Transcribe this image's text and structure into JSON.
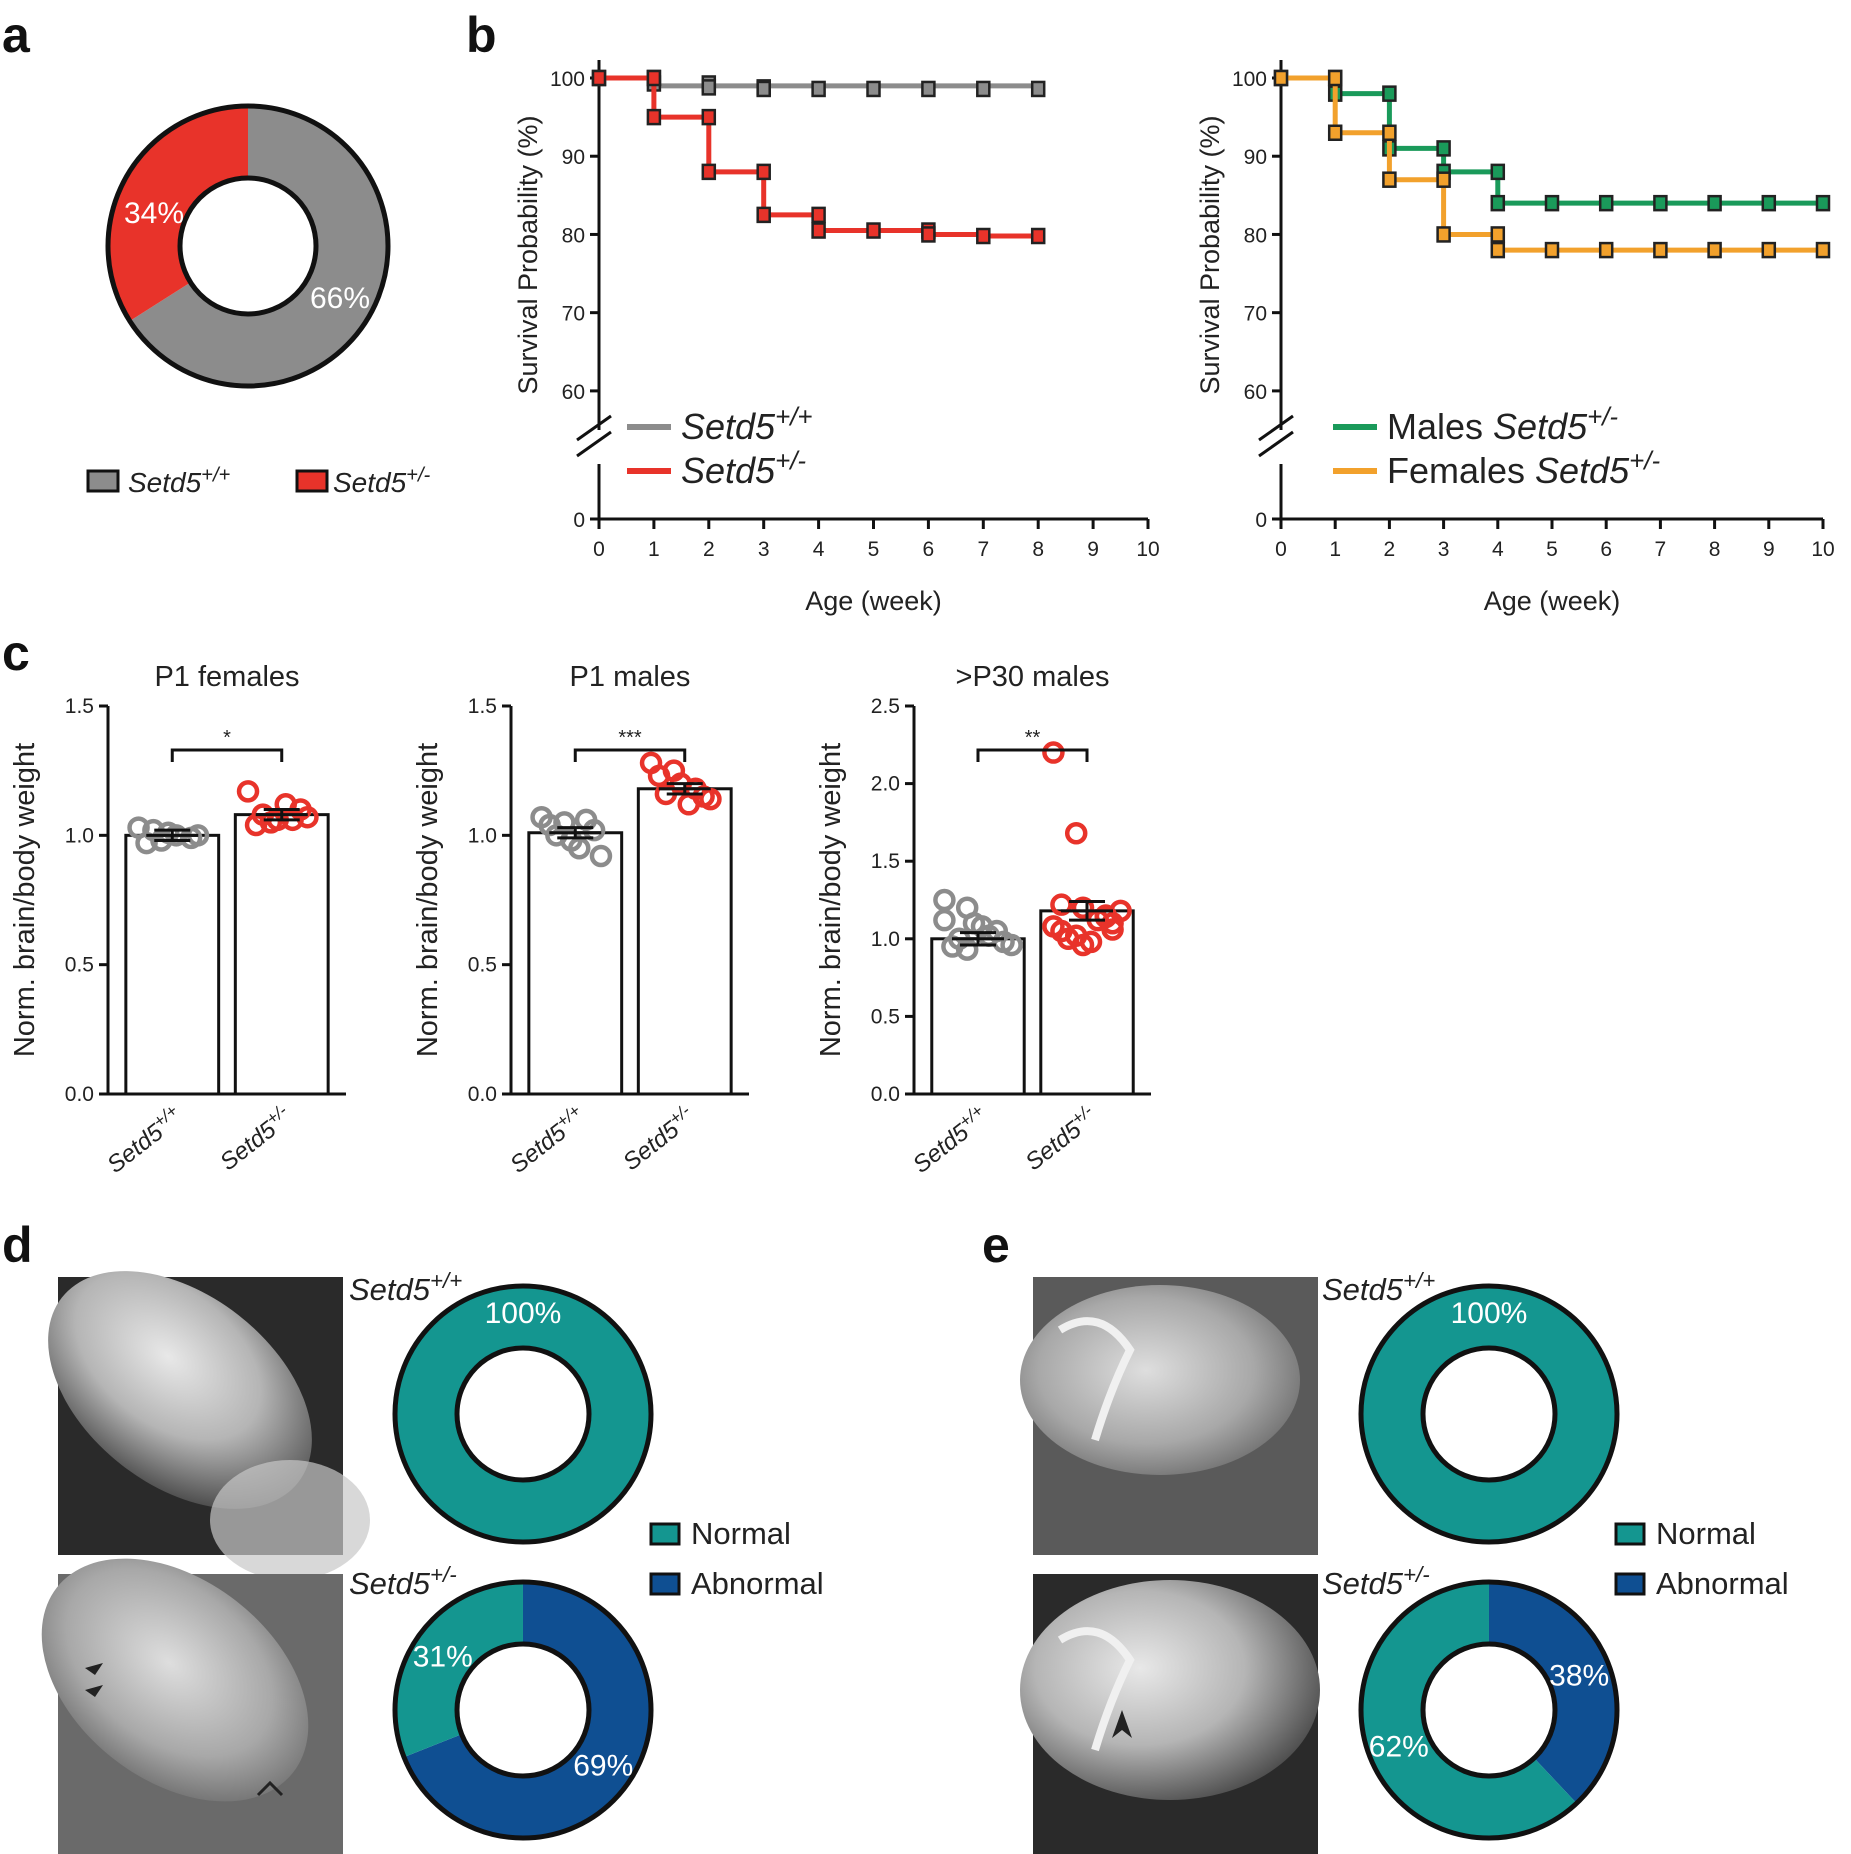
{
  "panel_labels": {
    "a": "a",
    "b": "b",
    "c": "c",
    "d": "d",
    "e": "e"
  },
  "colors": {
    "wt": "#8c8c8c",
    "het": "#e8332a",
    "male": "#1a9a5a",
    "female": "#f2a12c",
    "normal": "#149690",
    "abnormal": "#0f4f92"
  },
  "chart_data": [
    {
      "id": "a",
      "type": "pie",
      "donut": true,
      "slices": [
        {
          "label": "Setd5+/+",
          "value": 66,
          "text": "66%"
        },
        {
          "label": "Setd5+/-",
          "value": 34,
          "text": "34%"
        }
      ],
      "legend": [
        {
          "base": "Setd5",
          "sup": "+/+"
        },
        {
          "base": "Setd5",
          "sup": "+/-"
        }
      ]
    },
    {
      "id": "b_left",
      "type": "line",
      "step": true,
      "xlabel": "Age (week)",
      "ylabel": "Survival Probability (%)",
      "xlim": [
        0,
        10
      ],
      "xticks": [
        "0",
        "1",
        "2",
        "3",
        "4",
        "5",
        "6",
        "7",
        "8",
        "9",
        "10"
      ],
      "yticks": [
        "60",
        "70",
        "80",
        "90",
        "100"
      ],
      "ybreak_tick": "0",
      "ylim": [
        55,
        101
      ],
      "series": [
        {
          "name": "Setd5+/+",
          "base": "Setd5",
          "sup": "+/+",
          "steps": [
            [
              0,
              100
            ],
            [
              1,
              99
            ],
            [
              8,
              99
            ]
          ],
          "markers": [
            [
              0,
              100
            ],
            [
              1,
              100
            ],
            [
              1,
              99.3
            ],
            [
              2,
              99.3
            ],
            [
              2,
              98.8
            ],
            [
              3,
              98.8
            ],
            [
              3,
              98.6
            ],
            [
              4,
              98.6
            ],
            [
              5,
              98.6
            ],
            [
              6,
              98.6
            ],
            [
              7,
              98.6
            ],
            [
              8,
              98.6
            ]
          ]
        },
        {
          "name": "Setd5+/-",
          "base": "Setd5",
          "sup": "+/-",
          "steps": [
            [
              0,
              100
            ],
            [
              1,
              95
            ],
            [
              2,
              88
            ],
            [
              3,
              82.5
            ],
            [
              4,
              80.5
            ],
            [
              6,
              80
            ],
            [
              7,
              79.8
            ],
            [
              8,
              79.8
            ]
          ],
          "markers": [
            [
              0,
              100
            ],
            [
              1,
              100
            ],
            [
              1,
              95
            ],
            [
              2,
              95
            ],
            [
              2,
              88
            ],
            [
              3,
              88
            ],
            [
              3,
              82.5
            ],
            [
              4,
              82.5
            ],
            [
              4,
              80.5
            ],
            [
              5,
              80.5
            ],
            [
              6,
              80.5
            ],
            [
              6,
              80
            ],
            [
              7,
              79.8
            ],
            [
              8,
              79.8
            ]
          ]
        }
      ]
    },
    {
      "id": "b_right",
      "type": "line",
      "step": true,
      "xlabel": "Age (week)",
      "ylabel": "Survival Probability (%)",
      "xlim": [
        0,
        10
      ],
      "xticks": [
        "0",
        "1",
        "2",
        "3",
        "4",
        "5",
        "6",
        "7",
        "8",
        "9",
        "10"
      ],
      "yticks": [
        "60",
        "70",
        "80",
        "90",
        "100"
      ],
      "ybreak_tick": "0",
      "ylim": [
        55,
        101
      ],
      "series": [
        {
          "name": "Males Setd5+/-",
          "prefix": "Males ",
          "base": "Setd5",
          "sup": "+/-",
          "steps": [
            [
              0,
              100
            ],
            [
              1,
              98
            ],
            [
              2,
              91
            ],
            [
              3,
              88
            ],
            [
              4,
              84
            ],
            [
              10,
              84
            ]
          ],
          "markers": [
            [
              0,
              100
            ],
            [
              1,
              100
            ],
            [
              1,
              98
            ],
            [
              2,
              98
            ],
            [
              2,
              91
            ],
            [
              3,
              91
            ],
            [
              3,
              88
            ],
            [
              4,
              88
            ],
            [
              4,
              84
            ],
            [
              5,
              84
            ],
            [
              6,
              84
            ],
            [
              7,
              84
            ],
            [
              8,
              84
            ],
            [
              9,
              84
            ],
            [
              10,
              84
            ]
          ]
        },
        {
          "name": "Females Setd5+/-",
          "prefix": "Females ",
          "base": "Setd5",
          "sup": "+/-",
          "steps": [
            [
              0,
              100
            ],
            [
              1,
              93
            ],
            [
              2,
              87
            ],
            [
              3,
              80
            ],
            [
              4,
              78
            ],
            [
              10,
              78
            ]
          ],
          "markers": [
            [
              0,
              100
            ],
            [
              1,
              100
            ],
            [
              1,
              93
            ],
            [
              2,
              93
            ],
            [
              2,
              87
            ],
            [
              3,
              87
            ],
            [
              3,
              80
            ],
            [
              4,
              80
            ],
            [
              4,
              78
            ],
            [
              5,
              78
            ],
            [
              6,
              78
            ],
            [
              7,
              78
            ],
            [
              8,
              78
            ],
            [
              9,
              78
            ],
            [
              10,
              78
            ]
          ]
        }
      ]
    },
    {
      "id": "c1",
      "type": "bar",
      "title": "P1 females",
      "ylabel": "Norm. brain/body weight",
      "ylim": [
        0,
        1.5
      ],
      "yticks": [
        "0.0",
        "0.5",
        "1.0",
        "1.5"
      ],
      "categories": [
        {
          "base": "Setd5",
          "sup": "+/+"
        },
        {
          "base": "Setd5",
          "sup": "+/-"
        }
      ],
      "values": [
        1.0,
        1.08
      ],
      "sem": [
        0.02,
        0.02
      ],
      "significance": "*",
      "points": [
        [
          1.03,
          0.98,
          1.01,
          0.99,
          1.0,
          0.97,
          1.02,
          1.0
        ],
        [
          1.17,
          1.05,
          1.06,
          1.1,
          1.07,
          1.04,
          1.08,
          1.12,
          1.06
        ]
      ]
    },
    {
      "id": "c2",
      "type": "bar",
      "title": "P1 males",
      "ylabel": "Norm. brain/body weight",
      "ylim": [
        0,
        1.5
      ],
      "yticks": [
        "0.0",
        "0.5",
        "1.0",
        "1.5"
      ],
      "categories": [
        {
          "base": "Setd5",
          "sup": "+/+"
        },
        {
          "base": "Setd5",
          "sup": "+/-"
        }
      ],
      "values": [
        1.01,
        1.18
      ],
      "sem": [
        0.02,
        0.02
      ],
      "significance": "***",
      "points": [
        [
          1.07,
          1.05,
          0.98,
          1.02,
          0.92,
          1.04,
          1.0,
          0.95,
          1.06
        ],
        [
          1.28,
          1.25,
          1.2,
          1.15,
          1.14,
          1.23,
          1.16,
          1.12,
          1.18
        ]
      ]
    },
    {
      "id": "c3",
      "type": "bar",
      "title": ">P30 males",
      "ylabel": "Norm. brain/body weight",
      "ylim": [
        0,
        2.5
      ],
      "yticks": [
        "0.0",
        "0.5",
        "1.0",
        "1.5",
        "2.0",
        "2.5"
      ],
      "categories": [
        {
          "base": "Setd5",
          "sup": "+/+"
        },
        {
          "base": "Setd5",
          "sup": "+/-"
        }
      ],
      "values": [
        1.0,
        1.18
      ],
      "sem": [
        0.04,
        0.06
      ],
      "significance": "**",
      "points": [
        [
          1.25,
          1.2,
          1.1,
          1.05,
          0.98,
          0.95,
          1.0,
          1.08,
          1.02,
          0.96,
          1.12,
          0.93
        ],
        [
          2.2,
          1.68,
          1.2,
          1.15,
          1.1,
          1.05,
          1.0,
          0.98,
          1.12,
          1.18,
          1.08,
          1.02,
          0.96,
          1.14,
          1.06,
          1.22
        ]
      ]
    },
    {
      "id": "d",
      "type": "pie",
      "donut": true,
      "groups": [
        {
          "genotype": {
            "base": "Setd5",
            "sup": "+/+"
          },
          "slices": [
            {
              "label": "Normal",
              "value": 100,
              "text": "100%"
            }
          ]
        },
        {
          "genotype": {
            "base": "Setd5",
            "sup": "+/-"
          },
          "slices": [
            {
              "label": "Abnormal",
              "value": 69,
              "text": "69%"
            },
            {
              "label": "Normal",
              "value": 31,
              "text": "31%"
            }
          ]
        }
      ],
      "legend": [
        "Normal",
        "Abnormal"
      ]
    },
    {
      "id": "e",
      "type": "pie",
      "donut": true,
      "groups": [
        {
          "genotype": {
            "base": "Setd5",
            "sup": "+/+"
          },
          "slices": [
            {
              "label": "Normal",
              "value": 100,
              "text": "100%"
            }
          ]
        },
        {
          "genotype": {
            "base": "Setd5",
            "sup": "+/-"
          },
          "slices": [
            {
              "label": "Abnormal",
              "value": 38,
              "text": "38%"
            },
            {
              "label": "Normal",
              "value": 62,
              "text": "62%"
            }
          ]
        }
      ],
      "legend": [
        "Normal",
        "Abnormal"
      ]
    }
  ]
}
